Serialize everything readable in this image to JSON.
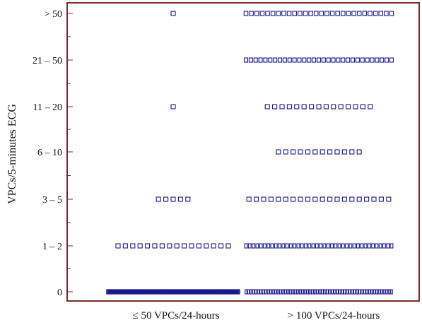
{
  "colors": {
    "frame": "#7a2a2a",
    "marker": "#1a1a8c",
    "text": "#111111"
  },
  "chart_data": {
    "type": "scatter",
    "marker": "hollow-square",
    "ylabel": "VPCs/5-minutes ECG",
    "categories": [
      "≤ 50 VPCs/24-hours",
      "> 100 VPCs/24-hours"
    ],
    "y_levels": [
      "0",
      "1 – 2",
      "3 – 5",
      "6 – 10",
      "11 – 20",
      "21 – 50",
      "> 50"
    ],
    "grid": false,
    "groups": [
      {
        "category": "≤ 50 VPCs/24-hours",
        "counts": {
          "0": 180,
          "1 – 2": 16,
          "3 – 5": 5,
          "6 – 10": 0,
          "11 – 20": 1,
          "21 – 50": 0,
          "> 50": 1
        }
      },
      {
        "category": "> 100 VPCs/24-hours",
        "counts": {
          "0": 60,
          "1 – 2": 40,
          "3 – 5": 20,
          "6 – 10": 12,
          "11 – 20": 15,
          "21 – 50": 31,
          "> 50": 28
        }
      }
    ]
  }
}
